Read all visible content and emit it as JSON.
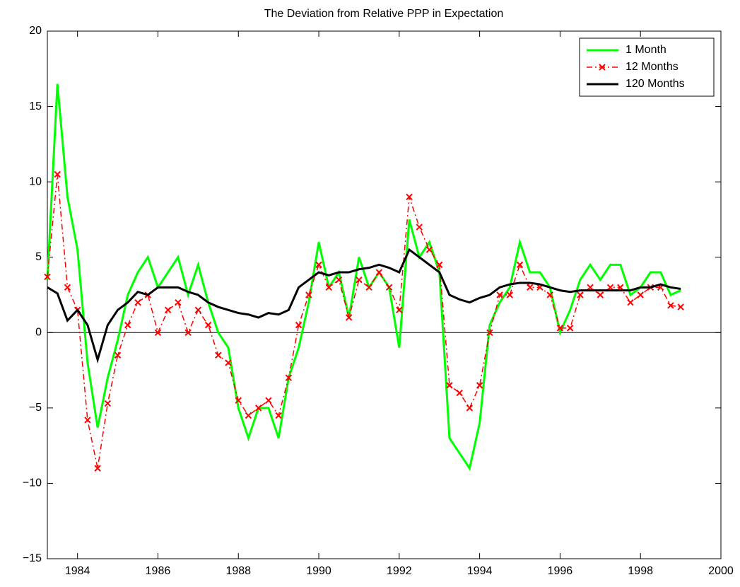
{
  "chart_data": {
    "type": "line",
    "title": "The Deviation from Relative PPP in Expectation",
    "x": [
      1983.25,
      1983.5,
      1983.75,
      1984,
      1984.25,
      1984.5,
      1984.75,
      1985,
      1985.25,
      1985.5,
      1985.75,
      1986,
      1986.25,
      1986.5,
      1986.75,
      1987,
      1987.25,
      1987.5,
      1987.75,
      1988,
      1988.25,
      1988.5,
      1988.75,
      1989,
      1989.25,
      1989.5,
      1989.75,
      1990,
      1990.25,
      1990.5,
      1990.75,
      1991,
      1991.25,
      1991.5,
      1991.75,
      1992,
      1992.25,
      1992.5,
      1992.75,
      1993,
      1993.25,
      1993.5,
      1993.75,
      1994,
      1994.25,
      1994.5,
      1994.75,
      1995,
      1995.25,
      1995.5,
      1995.75,
      1996,
      1996.25,
      1996.5,
      1996.75,
      1997,
      1997.25,
      1997.5,
      1997.75,
      1998,
      1998.25,
      1998.5,
      1998.75,
      1999
    ],
    "series": [
      {
        "name": "1 Month",
        "color": "#00ff00",
        "style": "solid",
        "values": [
          3.5,
          16.5,
          9,
          5.5,
          -2,
          -6.3,
          -3,
          -0.5,
          2.5,
          4,
          5,
          3,
          4,
          5,
          2.5,
          4.5,
          2,
          0,
          -1,
          -5,
          -7,
          -5,
          -5,
          -7,
          -3,
          -1,
          2,
          6,
          3,
          4,
          1,
          5,
          3,
          4,
          3,
          -1,
          7.5,
          5,
          6,
          4,
          -7,
          -8,
          -9,
          -6,
          0.5,
          2,
          3,
          6,
          4,
          4,
          3,
          0,
          1.5,
          3.5,
          4.5,
          3.5,
          4.5,
          4.5,
          2.5,
          3,
          4,
          4,
          2.5,
          2.8
        ]
      },
      {
        "name": "12 Months",
        "color": "#ff0000",
        "style": "dashdot",
        "marker": "x",
        "values": [
          3.7,
          10.5,
          3,
          1.5,
          -5.8,
          -9,
          -4.7,
          -1.5,
          0.5,
          2,
          2.5,
          0,
          1.5,
          2,
          0,
          1.5,
          0.5,
          -1.5,
          -2,
          -4.5,
          -5.5,
          -5,
          -4.5,
          -5.5,
          -3,
          0.5,
          2.5,
          4.5,
          3,
          3.5,
          1,
          3.5,
          3,
          4,
          3,
          1.5,
          9,
          7,
          5.5,
          4.5,
          -3.5,
          -4,
          -5,
          -3.5,
          0,
          2.5,
          2.5,
          4.5,
          3,
          3,
          2.5,
          0.3,
          0.3,
          2.5,
          3,
          2.5,
          3,
          3,
          2,
          2.5,
          3,
          3,
          1.8,
          1.7
        ]
      },
      {
        "name": "120 Months",
        "color": "#000000",
        "style": "solid",
        "values": [
          3,
          2.6,
          0.8,
          1.5,
          0.5,
          -1.8,
          0.5,
          1.5,
          2,
          2.7,
          2.5,
          3,
          3,
          3,
          2.7,
          2.5,
          2,
          1.7,
          1.5,
          1.3,
          1.2,
          1,
          1.3,
          1.2,
          1.5,
          3,
          3.5,
          4,
          3.8,
          4,
          4,
          4.2,
          4.3,
          4.5,
          4.3,
          4,
          5.5,
          5,
          4.5,
          4,
          2.5,
          2.2,
          2,
          2.3,
          2.5,
          3,
          3.2,
          3.3,
          3.3,
          3.2,
          3,
          2.8,
          2.7,
          2.8,
          2.8,
          2.8,
          2.8,
          2.8,
          2.8,
          3,
          3,
          3.2,
          3,
          2.9
        ]
      }
    ],
    "xlim": [
      1983.25,
      2000
    ],
    "xticks": [
      1984,
      1986,
      1988,
      1990,
      1992,
      1994,
      1996,
      1998,
      2000
    ],
    "ylim": [
      -15,
      20
    ],
    "yticks": [
      {
        "value": -15,
        "label": "−15"
      },
      {
        "value": -10,
        "label": "−10"
      },
      {
        "value": -5,
        "label": "−5"
      },
      0,
      5,
      10,
      15,
      20
    ],
    "legend": "top-right",
    "grid": false
  }
}
